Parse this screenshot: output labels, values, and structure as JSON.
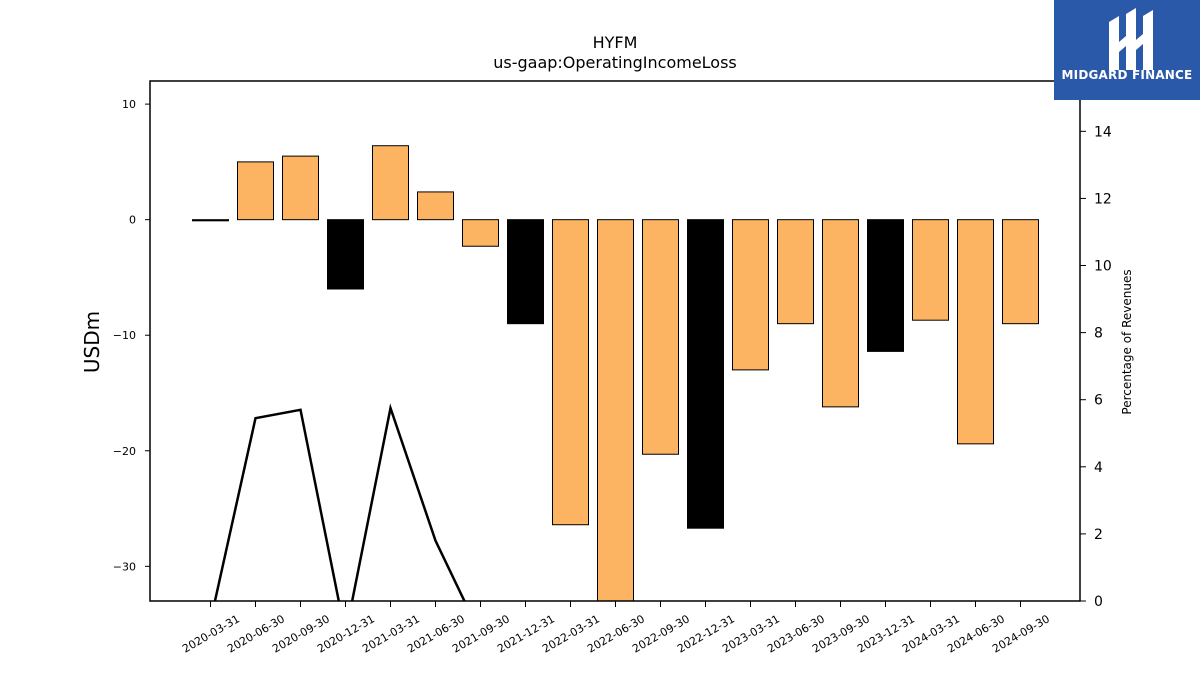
{
  "logo": {
    "name": "MIDGARD FINANCE"
  },
  "chart_data": {
    "type": "bar",
    "title": "HYFM",
    "subtitle": "us-gaap:OperatingIncomeLoss",
    "ylabel": "USDm",
    "y2label": "Percentage of Revenues",
    "ylim": [
      -33,
      12
    ],
    "y2lim": [
      0,
      15.5
    ],
    "yticks": [
      10,
      0,
      -10,
      -20,
      -30
    ],
    "y2ticks": [
      0,
      2,
      4,
      6,
      8,
      10,
      12,
      14
    ],
    "categories": [
      "2020-03-31",
      "2020-06-30",
      "2020-09-30",
      "2020-12-31",
      "2021-03-31",
      "2021-06-30",
      "2021-09-30",
      "2021-12-31",
      "2022-03-31",
      "2022-06-30",
      "2022-09-30",
      "2022-12-31",
      "2023-03-31",
      "2023-06-30",
      "2023-09-30",
      "2023-12-31",
      "2024-03-31",
      "2024-06-30",
      "2024-09-30"
    ],
    "series": [
      {
        "kind": "bar",
        "values": [
          -0.1,
          5.0,
          5.5,
          -6.0,
          6.4,
          2.4,
          -2.3,
          -9.0,
          -26.4,
          -35.0,
          -20.3,
          -26.7,
          -13.0,
          -9.0,
          -16.2,
          -11.4,
          -8.7,
          -19.4,
          -9.0
        ],
        "colors": [
          "#000000",
          "#fdb462",
          "#fdb462",
          "#000000",
          "#fdb462",
          "#fdb462",
          "#fdb462",
          "#000000",
          "#fdb462",
          "#fdb462",
          "#fdb462",
          "#000000",
          "#fdb462",
          "#fdb462",
          "#fdb462",
          "#000000",
          "#fdb462",
          "#fdb462",
          "#fdb462"
        ]
      },
      {
        "kind": "line",
        "axis": "right",
        "color": "#000000",
        "values": [
          -0.6,
          5.45,
          5.7,
          -1.0,
          5.75,
          1.8,
          -1.0,
          null,
          null,
          null,
          null,
          null,
          null,
          null,
          null,
          null,
          null,
          null,
          null
        ]
      }
    ],
    "grid": false,
    "legend": "none"
  }
}
